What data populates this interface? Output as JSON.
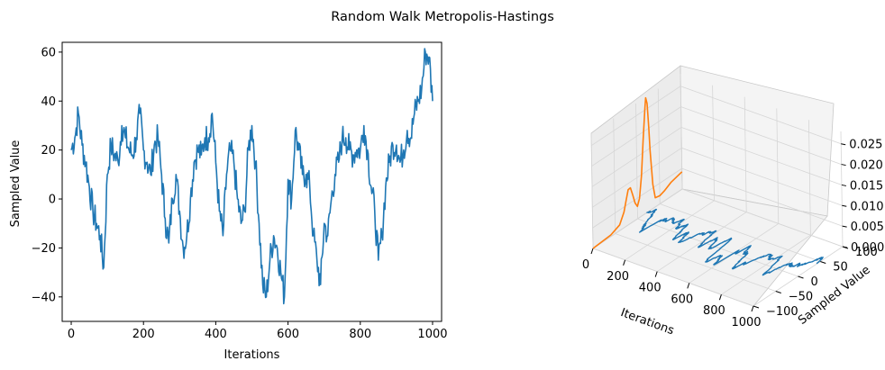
{
  "figure": {
    "suptitle": "Random Walk Metropolis-Hastings"
  },
  "colors": {
    "trace": "#1f77b4",
    "density": "#ff7f0e"
  },
  "chart_data": [
    {
      "type": "line",
      "panel": "trace-2d",
      "xlabel": "Iterations",
      "ylabel": "Sampled Value",
      "xlim": [
        -25,
        1025
      ],
      "ylim": [
        -50,
        64
      ],
      "xticks": [
        0,
        200,
        400,
        600,
        800,
        1000
      ],
      "xtick_labels": [
        "0",
        "200",
        "400",
        "600",
        "800",
        "1000"
      ],
      "yticks": [
        -40,
        -20,
        0,
        20,
        40,
        60
      ],
      "ytick_labels": [
        "−40",
        "−20",
        "0",
        "20",
        "40",
        "60"
      ],
      "grid": false,
      "series": [
        {
          "color": "#1f77b4",
          "x": [
            0,
            10,
            20,
            30,
            40,
            50,
            60,
            70,
            80,
            90,
            100,
            110,
            120,
            130,
            140,
            150,
            160,
            170,
            180,
            190,
            200,
            210,
            220,
            230,
            240,
            250,
            260,
            270,
            280,
            290,
            300,
            310,
            320,
            330,
            340,
            350,
            360,
            370,
            380,
            390,
            400,
            410,
            420,
            430,
            440,
            450,
            460,
            470,
            480,
            490,
            500,
            510,
            520,
            530,
            540,
            550,
            560,
            570,
            580,
            590,
            600,
            610,
            620,
            630,
            640,
            650,
            660,
            670,
            680,
            690,
            700,
            710,
            720,
            730,
            740,
            750,
            760,
            770,
            780,
            790,
            800,
            810,
            820,
            830,
            840,
            850,
            860,
            870,
            880,
            890,
            900,
            910,
            920,
            930,
            940,
            950,
            960,
            970,
            980,
            990,
            1000
          ],
          "values": [
            20,
            25,
            35,
            22,
            15,
            5,
            -5,
            -10,
            -15,
            -28,
            10,
            22,
            18,
            15,
            30,
            25,
            20,
            18,
            25,
            35,
            20,
            15,
            10,
            22,
            25,
            10,
            -8,
            -18,
            0,
            10,
            -5,
            -20,
            -15,
            0,
            15,
            20,
            18,
            25,
            25,
            35,
            15,
            -5,
            -15,
            10,
            20,
            15,
            0,
            -10,
            -5,
            20,
            30,
            15,
            -10,
            -35,
            -40,
            -25,
            -15,
            -20,
            -30,
            -40,
            8,
            0,
            28,
            20,
            10,
            10,
            5,
            -15,
            -25,
            -35,
            -10,
            -15,
            0,
            10,
            15,
            25,
            25,
            20,
            18,
            20,
            20,
            30,
            20,
            5,
            -5,
            -25,
            -15,
            5,
            15,
            22,
            22,
            15,
            20,
            28,
            25,
            35,
            40,
            45,
            60,
            58,
            40
          ]
        }
      ]
    },
    {
      "type": "line",
      "panel": "trace-3d",
      "xlabel": "Iterations",
      "ylabel": "Sampled Value",
      "zlabel": "",
      "xlim": [
        0,
        1000
      ],
      "ylim": [
        -100,
        100
      ],
      "zlim": [
        0,
        0.028
      ],
      "xticks": [
        0,
        200,
        400,
        600,
        800,
        1000
      ],
      "xtick_labels": [
        "0",
        "200",
        "400",
        "600",
        "800",
        "1000"
      ],
      "yticks": [
        -100,
        -50,
        0,
        50,
        100
      ],
      "ytick_labels": [
        "−100",
        "−50",
        "0",
        "50",
        "100"
      ],
      "zticks": [
        0,
        0.005,
        0.01,
        0.015,
        0.02,
        0.025
      ],
      "ztick_labels": [
        "0.000",
        "0.005",
        "0.010",
        "0.015",
        "0.020",
        "0.025"
      ],
      "grid": true,
      "series": [
        {
          "color": "#1f77b4",
          "note_source": "same samples as trace-2d, drawn on the plane z = 0"
        },
        {
          "color": "#ff7f0e",
          "plane": "x = 0",
          "y": [
            -100,
            -60,
            -40,
            -30,
            -25,
            -20,
            -15,
            -10,
            -5,
            0,
            5,
            10,
            15,
            20,
            22,
            25,
            28,
            30,
            35,
            40,
            50,
            60,
            75,
            100
          ],
          "z": [
            0.0,
            0.0004,
            0.0014,
            0.0038,
            0.0062,
            0.0085,
            0.0086,
            0.0065,
            0.0042,
            0.003,
            0.0046,
            0.0098,
            0.018,
            0.0255,
            0.0278,
            0.0262,
            0.02,
            0.0145,
            0.0058,
            0.0022,
            0.002,
            0.0024,
            0.0034,
            0.0042
          ]
        }
      ]
    }
  ]
}
